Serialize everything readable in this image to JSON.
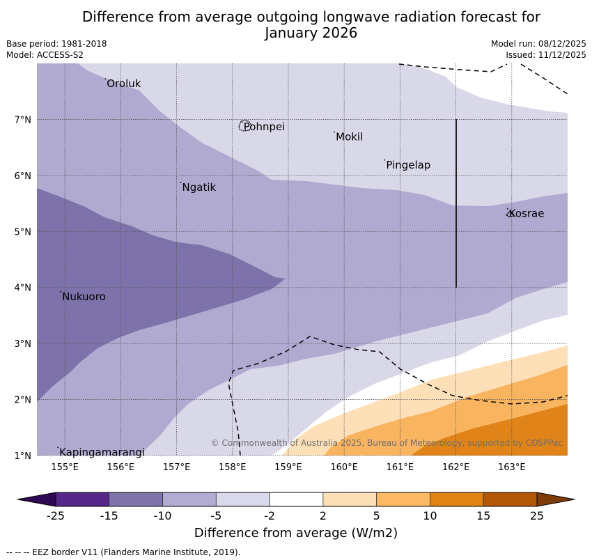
{
  "header": {
    "title_line1": "Difference from average outgoing longwave radiation forecast for",
    "title_line2": "January 2026",
    "base_period": "Base period: 1981-2018",
    "model": "Model: ACCESS-S2",
    "model_run": "Model run: 08/12/2025",
    "issued": "Issued: 11/12/2025"
  },
  "map": {
    "lon_range": [
      154.5,
      164.0
    ],
    "lat_range": [
      1.0,
      8.0
    ],
    "lon_ticks": [
      {
        "value": 155,
        "label": "155°E"
      },
      {
        "value": 156,
        "label": "156°E"
      },
      {
        "value": 157,
        "label": "157°E"
      },
      {
        "value": 158,
        "label": "158°E"
      },
      {
        "value": 159,
        "label": "159°E"
      },
      {
        "value": 160,
        "label": "160°E"
      },
      {
        "value": 161,
        "label": "161°E"
      },
      {
        "value": 162,
        "label": "162°E"
      },
      {
        "value": 163,
        "label": "163°E"
      }
    ],
    "lat_ticks": [
      {
        "value": 1,
        "label": "1°N"
      },
      {
        "value": 2,
        "label": "2°N"
      },
      {
        "value": 3,
        "label": "3°N"
      },
      {
        "value": 4,
        "label": "4°N"
      },
      {
        "value": 5,
        "label": "5°N"
      },
      {
        "value": 6,
        "label": "6°N"
      },
      {
        "value": 7,
        "label": "7°N"
      }
    ],
    "places": [
      {
        "name": "Oroluk",
        "lon": 155.75,
        "lat": 7.65
      },
      {
        "name": "Pohnpei",
        "lon": 158.2,
        "lat": 6.88
      },
      {
        "name": "Mokil",
        "lon": 159.85,
        "lat": 6.7
      },
      {
        "name": "Pingelap",
        "lon": 160.75,
        "lat": 6.2
      },
      {
        "name": "Ngatik",
        "lon": 157.1,
        "lat": 5.8
      },
      {
        "name": "Kosrae",
        "lon": 162.95,
        "lat": 5.33
      },
      {
        "name": "Nukuoro",
        "lon": 154.95,
        "lat": 3.85
      },
      {
        "name": "Kapingamarangi",
        "lon": 154.9,
        "lat": 1.07
      }
    ],
    "copyright": "© Commonwealth of Australia 2025, Bureau of Meteorology, supported by COSPPac",
    "contour_levels": {
      "band_-15_-10": {
        "color": "#7e72aa",
        "value": "-15 to -10"
      },
      "band_-10_-5": {
        "color": "#b0aad0",
        "value": "-10 to -5"
      },
      "band_-5_-2": {
        "color": "#d8d8e9",
        "value": "-5 to -2"
      },
      "band_-2_2": {
        "color": "#ffffff",
        "value": "-2 to 2"
      },
      "band_2_5": {
        "color": "#fde0b8",
        "value": "2 to 5"
      },
      "band_5_10": {
        "color": "#f9b460",
        "value": "5 to 10"
      },
      "band_10_15": {
        "color": "#e08318",
        "value": "10 to 15"
      }
    }
  },
  "colorbar": {
    "title": "Difference from average (W/m2)",
    "ticks": [
      "-25",
      "-15",
      "-10",
      "-5",
      "-2",
      "2",
      "5",
      "10",
      "15",
      "25"
    ],
    "colors": [
      "#2e0854",
      "#542788",
      "#8073ac",
      "#b2abd2",
      "#d8daeb",
      "#ffffff",
      "#fee0b6",
      "#fdb863",
      "#e08214",
      "#b35806",
      "#7f3b08"
    ]
  },
  "footnote": "-- -- -- EEZ border V11 (Flanders Marine Institute, 2019)."
}
